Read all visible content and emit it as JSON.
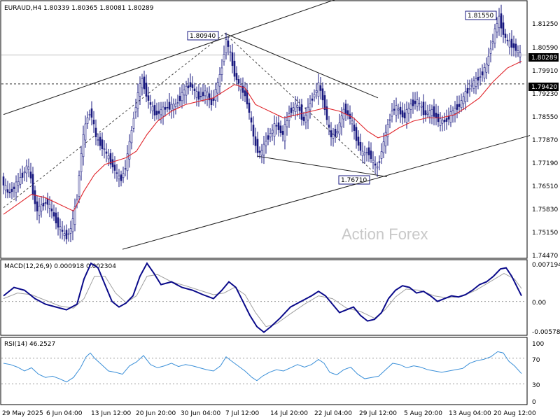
{
  "chart_data": {
    "type": "candlestick",
    "symbol_header": "EURAUD,H4 1.80339 1.80365 1.80081 1.80289",
    "watermark": "Action Forex",
    "price_axis": {
      "ylim": [
        1.742,
        1.819
      ],
      "ticks": [
        "1.81250",
        "1.80590",
        "1.79910",
        "1.79230",
        "1.78550",
        "1.77870",
        "1.77190",
        "1.76510",
        "1.75830",
        "1.75150",
        "1.74470"
      ],
      "current_price_label": "1.80289",
      "level_label": "1.79420"
    },
    "time_axis": {
      "labels": [
        "29 May 2025",
        "6 Jun 04:00",
        "13 Jun 12:00",
        "20 Jun 20:00",
        "30 Jun 04:00",
        "7 Jul 12:00",
        "14 Jul 20:00",
        "22 Jul 04:00",
        "29 Jul 12:00",
        "5 Aug 20:00",
        "13 Aug 04:00",
        "20 Aug 12:00"
      ]
    },
    "annotations": {
      "swing_high_1": "1.80940",
      "swing_low": "1.76710",
      "swing_high_2": "1.81550"
    },
    "price_path": [
      [
        0,
        1.7655
      ],
      [
        10,
        1.761
      ],
      [
        25,
        1.765
      ],
      [
        38,
        1.77
      ],
      [
        50,
        1.756
      ],
      [
        65,
        1.759
      ],
      [
        80,
        1.752
      ],
      [
        92,
        1.748
      ],
      [
        100,
        1.751
      ],
      [
        108,
        1.76
      ],
      [
        115,
        1.776
      ],
      [
        122,
        1.784
      ],
      [
        128,
        1.786
      ],
      [
        135,
        1.778
      ],
      [
        145,
        1.775
      ],
      [
        158,
        1.77
      ],
      [
        170,
        1.765
      ],
      [
        178,
        1.77
      ],
      [
        185,
        1.779
      ],
      [
        192,
        1.788
      ],
      [
        200,
        1.796
      ],
      [
        210,
        1.789
      ],
      [
        220,
        1.785
      ],
      [
        235,
        1.787
      ],
      [
        250,
        1.788
      ],
      [
        260,
        1.792
      ],
      [
        270,
        1.794
      ],
      [
        282,
        1.79
      ],
      [
        292,
        1.792
      ],
      [
        300,
        1.788
      ],
      [
        310,
        1.795
      ],
      [
        316,
        1.8
      ],
      [
        320,
        1.808
      ],
      [
        326,
        1.804
      ],
      [
        333,
        1.797
      ],
      [
        342,
        1.793
      ],
      [
        350,
        1.79
      ],
      [
        357,
        1.782
      ],
      [
        362,
        1.776
      ],
      [
        370,
        1.773
      ],
      [
        380,
        1.778
      ],
      [
        392,
        1.782
      ],
      [
        402,
        1.779
      ],
      [
        412,
        1.786
      ],
      [
        422,
        1.788
      ],
      [
        432,
        1.783
      ],
      [
        444,
        1.79
      ],
      [
        454,
        1.794
      ],
      [
        462,
        1.787
      ],
      [
        470,
        1.778
      ],
      [
        480,
        1.78
      ],
      [
        490,
        1.787
      ],
      [
        500,
        1.783
      ],
      [
        508,
        1.777
      ],
      [
        516,
        1.773
      ],
      [
        524,
        1.774
      ],
      [
        532,
        1.77
      ],
      [
        537,
        1.769
      ],
      [
        543,
        1.774
      ],
      [
        550,
        1.78
      ],
      [
        557,
        1.786
      ],
      [
        565,
        1.787
      ],
      [
        575,
        1.784
      ],
      [
        585,
        1.788
      ],
      [
        595,
        1.789
      ],
      [
        605,
        1.785
      ],
      [
        615,
        1.786
      ],
      [
        625,
        1.783
      ],
      [
        635,
        1.783
      ],
      [
        645,
        1.786
      ],
      [
        655,
        1.788
      ],
      [
        662,
        1.791
      ],
      [
        672,
        1.794
      ],
      [
        682,
        1.796
      ],
      [
        692,
        1.799
      ],
      [
        700,
        1.806
      ],
      [
        706,
        1.811
      ],
      [
        711,
        1.814
      ],
      [
        716,
        1.81
      ],
      [
        722,
        1.807
      ],
      [
        728,
        1.806
      ],
      [
        734,
        1.805
      ],
      [
        740,
        1.8029
      ]
    ],
    "moving_average": [
      [
        0,
        1.755
      ],
      [
        20,
        1.758
      ],
      [
        40,
        1.761
      ],
      [
        60,
        1.76
      ],
      [
        80,
        1.758
      ],
      [
        100,
        1.756
      ],
      [
        115,
        1.762
      ],
      [
        130,
        1.767
      ],
      [
        145,
        1.77
      ],
      [
        160,
        1.771
      ],
      [
        175,
        1.772
      ],
      [
        190,
        1.774
      ],
      [
        205,
        1.779
      ],
      [
        220,
        1.783
      ],
      [
        240,
        1.786
      ],
      [
        260,
        1.788
      ],
      [
        280,
        1.789
      ],
      [
        300,
        1.79
      ],
      [
        315,
        1.792
      ],
      [
        330,
        1.794
      ],
      [
        345,
        1.793
      ],
      [
        360,
        1.788
      ],
      [
        380,
        1.786
      ],
      [
        400,
        1.784
      ],
      [
        420,
        1.785
      ],
      [
        440,
        1.786
      ],
      [
        460,
        1.787
      ],
      [
        480,
        1.786
      ],
      [
        500,
        1.784
      ],
      [
        520,
        1.78
      ],
      [
        535,
        1.778
      ],
      [
        550,
        1.779
      ],
      [
        565,
        1.781
      ],
      [
        585,
        1.783
      ],
      [
        605,
        1.784
      ],
      [
        625,
        1.784
      ],
      [
        645,
        1.785
      ],
      [
        660,
        1.787
      ],
      [
        680,
        1.79
      ],
      [
        700,
        1.795
      ],
      [
        720,
        1.799
      ],
      [
        740,
        1.801
      ]
    ],
    "macd": {
      "label": "MACD(12,26,9) 0.000918 0.002304",
      "ticks": [
        "0.007194",
        "0.00",
        "-0.005784"
      ],
      "ylim": [
        -0.0058,
        0.0072
      ],
      "main": [
        [
          0,
          0.001
        ],
        [
          15,
          0.0025
        ],
        [
          30,
          0.002
        ],
        [
          45,
          0.0005
        ],
        [
          60,
          -0.0005
        ],
        [
          75,
          -0.001
        ],
        [
          90,
          -0.0015
        ],
        [
          105,
          -0.0005
        ],
        [
          115,
          0.004
        ],
        [
          125,
          0.0068
        ],
        [
          135,
          0.006
        ],
        [
          145,
          0.003
        ],
        [
          155,
          0.0
        ],
        [
          165,
          -0.001
        ],
        [
          175,
          -0.0003
        ],
        [
          185,
          0.001
        ],
        [
          195,
          0.0045
        ],
        [
          205,
          0.0068
        ],
        [
          215,
          0.005
        ],
        [
          225,
          0.003
        ],
        [
          240,
          0.0035
        ],
        [
          255,
          0.0025
        ],
        [
          270,
          0.002
        ],
        [
          285,
          0.0012
        ],
        [
          300,
          0.0005
        ],
        [
          312,
          0.002
        ],
        [
          322,
          0.0035
        ],
        [
          332,
          0.0025
        ],
        [
          342,
          0.0
        ],
        [
          352,
          -0.0025
        ],
        [
          362,
          -0.0045
        ],
        [
          372,
          -0.0055
        ],
        [
          382,
          -0.0045
        ],
        [
          395,
          -0.003
        ],
        [
          410,
          -0.001
        ],
        [
          425,
          0.0
        ],
        [
          440,
          0.001
        ],
        [
          450,
          0.0018
        ],
        [
          460,
          0.001
        ],
        [
          470,
          -0.0005
        ],
        [
          480,
          -0.002
        ],
        [
          490,
          -0.0015
        ],
        [
          500,
          -0.001
        ],
        [
          510,
          -0.0025
        ],
        [
          520,
          -0.0035
        ],
        [
          530,
          -0.0032
        ],
        [
          540,
          -0.002
        ],
        [
          550,
          0.0005
        ],
        [
          560,
          0.002
        ],
        [
          570,
          0.0028
        ],
        [
          580,
          0.0025
        ],
        [
          590,
          0.0015
        ],
        [
          600,
          0.0018
        ],
        [
          610,
          0.001
        ],
        [
          620,
          0.0
        ],
        [
          630,
          0.0005
        ],
        [
          640,
          0.001
        ],
        [
          650,
          0.0008
        ],
        [
          660,
          0.0012
        ],
        [
          670,
          0.002
        ],
        [
          680,
          0.003
        ],
        [
          690,
          0.0035
        ],
        [
          700,
          0.0045
        ],
        [
          710,
          0.0058
        ],
        [
          718,
          0.006
        ],
        [
          726,
          0.0045
        ],
        [
          734,
          0.0025
        ],
        [
          740,
          0.001
        ]
      ],
      "signal": [
        [
          0,
          0.0005
        ],
        [
          20,
          0.0015
        ],
        [
          40,
          0.0012
        ],
        [
          60,
          0.0002
        ],
        [
          80,
          -0.0008
        ],
        [
          100,
          -0.0012
        ],
        [
          115,
          0.0005
        ],
        [
          130,
          0.0045
        ],
        [
          145,
          0.0045
        ],
        [
          160,
          0.0015
        ],
        [
          175,
          -0.0002
        ],
        [
          190,
          0.001
        ],
        [
          205,
          0.0045
        ],
        [
          220,
          0.0048
        ],
        [
          240,
          0.0035
        ],
        [
          260,
          0.0028
        ],
        [
          280,
          0.002
        ],
        [
          300,
          0.0012
        ],
        [
          315,
          0.0015
        ],
        [
          330,
          0.0025
        ],
        [
          345,
          0.0012
        ],
        [
          360,
          -0.002
        ],
        [
          375,
          -0.0045
        ],
        [
          390,
          -0.004
        ],
        [
          410,
          -0.0022
        ],
        [
          430,
          -0.0005
        ],
        [
          450,
          0.001
        ],
        [
          470,
          0.0005
        ],
        [
          490,
          -0.0012
        ],
        [
          510,
          -0.0018
        ],
        [
          530,
          -0.003
        ],
        [
          545,
          -0.0015
        ],
        [
          560,
          0.0008
        ],
        [
          575,
          0.0022
        ],
        [
          595,
          0.002
        ],
        [
          615,
          0.001
        ],
        [
          635,
          0.0006
        ],
        [
          655,
          0.0009
        ],
        [
          675,
          0.002
        ],
        [
          695,
          0.0035
        ],
        [
          715,
          0.005
        ],
        [
          730,
          0.004
        ],
        [
          740,
          0.0023
        ]
      ]
    },
    "rsi": {
      "label": "RSI(14) 46.2527",
      "ticks": [
        "100",
        "70",
        "30",
        "0"
      ],
      "ylim": [
        0,
        100
      ],
      "levels": [
        70,
        30
      ],
      "values": [
        [
          0,
          62
        ],
        [
          10,
          60
        ],
        [
          20,
          56
        ],
        [
          30,
          50
        ],
        [
          40,
          55
        ],
        [
          50,
          45
        ],
        [
          60,
          40
        ],
        [
          70,
          42
        ],
        [
          80,
          38
        ],
        [
          90,
          33
        ],
        [
          100,
          40
        ],
        [
          110,
          55
        ],
        [
          118,
          72
        ],
        [
          124,
          78
        ],
        [
          130,
          70
        ],
        [
          140,
          60
        ],
        [
          150,
          50
        ],
        [
          160,
          48
        ],
        [
          170,
          45
        ],
        [
          180,
          58
        ],
        [
          190,
          64
        ],
        [
          200,
          74
        ],
        [
          210,
          60
        ],
        [
          220,
          55
        ],
        [
          230,
          58
        ],
        [
          240,
          62
        ],
        [
          250,
          57
        ],
        [
          260,
          60
        ],
        [
          270,
          58
        ],
        [
          280,
          55
        ],
        [
          290,
          52
        ],
        [
          300,
          50
        ],
        [
          310,
          58
        ],
        [
          318,
          72
        ],
        [
          325,
          66
        ],
        [
          335,
          58
        ],
        [
          345,
          50
        ],
        [
          355,
          40
        ],
        [
          362,
          35
        ],
        [
          370,
          42
        ],
        [
          380,
          48
        ],
        [
          390,
          52
        ],
        [
          400,
          50
        ],
        [
          410,
          55
        ],
        [
          420,
          60
        ],
        [
          430,
          56
        ],
        [
          440,
          60
        ],
        [
          450,
          68
        ],
        [
          458,
          62
        ],
        [
          466,
          48
        ],
        [
          476,
          44
        ],
        [
          486,
          52
        ],
        [
          496,
          56
        ],
        [
          506,
          45
        ],
        [
          516,
          38
        ],
        [
          526,
          40
        ],
        [
          536,
          42
        ],
        [
          546,
          52
        ],
        [
          556,
          62
        ],
        [
          566,
          60
        ],
        [
          576,
          55
        ],
        [
          586,
          58
        ],
        [
          596,
          56
        ],
        [
          606,
          52
        ],
        [
          616,
          50
        ],
        [
          626,
          48
        ],
        [
          636,
          50
        ],
        [
          646,
          52
        ],
        [
          656,
          54
        ],
        [
          666,
          62
        ],
        [
          676,
          66
        ],
        [
          686,
          68
        ],
        [
          696,
          72
        ],
        [
          706,
          80
        ],
        [
          714,
          78
        ],
        [
          722,
          65
        ],
        [
          730,
          58
        ],
        [
          740,
          46
        ]
      ]
    },
    "colors": {
      "candle": "#1a1a80",
      "ma": "#e0242a",
      "macd_main": "#0a0a8a",
      "macd_signal": "#a0a0a0",
      "rsi": "#3a8fd8",
      "grid_dash": "#333333",
      "price_line": "#c0c0c0"
    }
  }
}
